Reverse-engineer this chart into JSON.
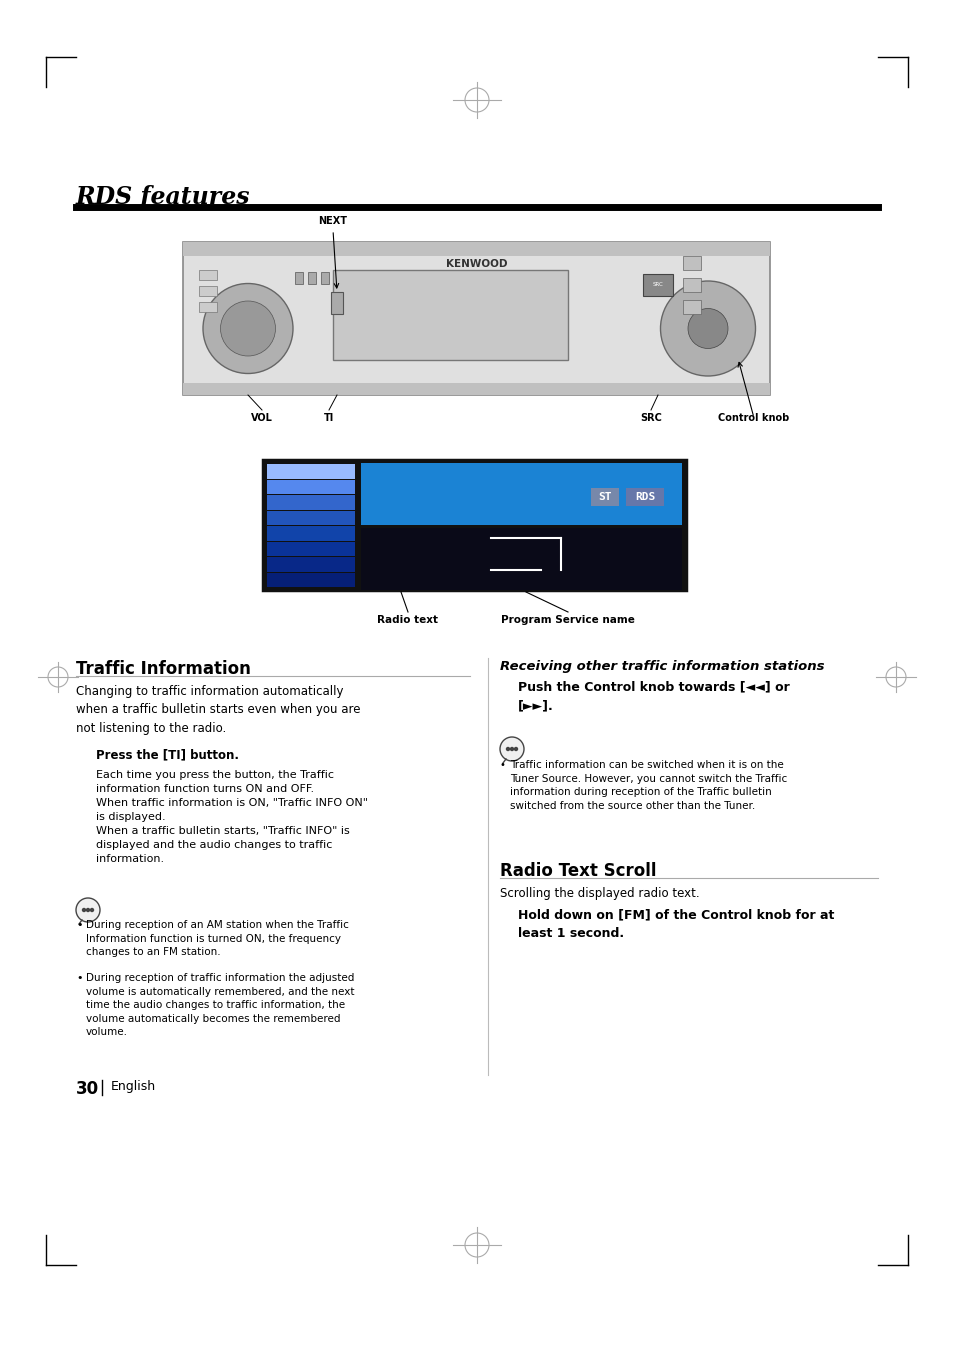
{
  "bg_color": "#ffffff",
  "title": "RDS features",
  "page_number": "30",
  "page_lang": "English",
  "sections": {
    "traffic_info": {
      "heading": "Traffic Information",
      "intro": "Changing to traffic information automatically\nwhen a traffic bulletin starts even when you are\nnot listening to the radio.",
      "subheading": "Press the [TI] button.",
      "body1": "Each time you press the button, the Traffic\ninformation function turns ON and OFF.\nWhen traffic information is ON, \"Traffic INFO ON\"\nis displayed.\nWhen a traffic bulletin starts, \"Traffic INFO\" is\ndisplayed and the audio changes to traffic\ninformation.",
      "bullet1": "During reception of an AM station when the Traffic\nInformation function is turned ON, the frequency\nchanges to an FM station.",
      "bullet2": "During reception of traffic information the adjusted\nvolume is automatically remembered, and the next\ntime the audio changes to traffic information, the\nvolume automatically becomes the remembered\nvolume."
    },
    "right_col": {
      "heading": "Receiving other traffic information stations",
      "body1": "Push the Control knob towards [◄◄] or\n[►►].",
      "bullet1": "Traffic information can be switched when it is on the\nTuner Source. However, you cannot switch the Traffic\ninformation during reception of the Traffic bulletin\nswitched from the source other than the Tuner."
    },
    "radio_text": {
      "heading": "Radio Text Scroll",
      "intro": "Scrolling the displayed radio text.",
      "body": "Hold down on [FM] of the Control knob for at\nleast 1 second."
    }
  },
  "diagram": {
    "radio_labels": [
      "NEXT",
      "VOL",
      "TI",
      "SRC",
      "Control knob"
    ],
    "display_labels": [
      "Radio text",
      "Program Service name"
    ]
  }
}
